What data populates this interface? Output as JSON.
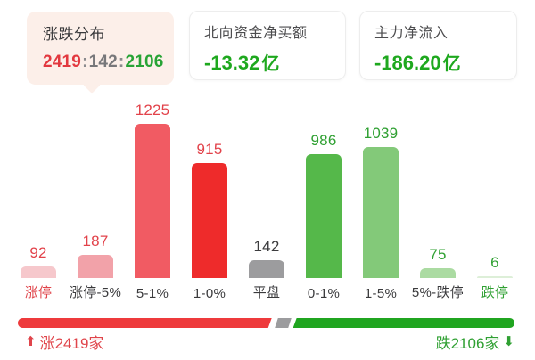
{
  "cards": {
    "distribution": {
      "title": "涨跌分布",
      "up_count": "2419",
      "flat_count": "142",
      "down_count": "2106",
      "separator": ":"
    },
    "northbound": {
      "title": "北向资金净买额",
      "value": "-13.32",
      "unit": "亿"
    },
    "main_inflow": {
      "title": "主力净流入",
      "value": "-186.20",
      "unit": "亿"
    }
  },
  "chart_data": {
    "type": "bar",
    "title": "涨跌分布",
    "categories": [
      "涨停",
      "涨停-5%",
      "5-1%",
      "1-0%",
      "平盘",
      "0-1%",
      "1-5%",
      "5%-跌停",
      "跌停"
    ],
    "values": [
      92,
      187,
      1225,
      915,
      142,
      986,
      1039,
      75,
      6
    ],
    "bar_colors": [
      "#f6c8cc",
      "#f2a2a9",
      "#f15b63",
      "#ee2b2b",
      "#9c9c9e",
      "#55b84a",
      "#83c979",
      "#abdba2",
      "#ddefd8"
    ],
    "value_label_colors": [
      "#e2424a",
      "#e2424a",
      "#e2424a",
      "#e2424a",
      "#3c3c3e",
      "#2fa032",
      "#2fa032",
      "#2fa032",
      "#2fa032"
    ],
    "category_label_colors": [
      "#e0454b",
      "#3a3a3c",
      "#3a3a3c",
      "#3a3a3c",
      "#3a3a3c",
      "#3a3a3c",
      "#3a3a3c",
      "#3a3a3c",
      "#2fa032"
    ],
    "xlabel": "",
    "ylabel": "",
    "ylim": [
      0,
      1225
    ],
    "grid": false,
    "legend": null
  },
  "summary_bar": {
    "up_count": 2419,
    "flat_count": 142,
    "down_count": 2106,
    "up_label": "涨2419家",
    "down_label": "跌2106家",
    "up_arrow_icon": "⬆",
    "down_arrow_icon": "⬇",
    "segment_colors": {
      "up": "#ee3a3c",
      "flat": "#9c9c9e",
      "down": "#20a520"
    }
  }
}
